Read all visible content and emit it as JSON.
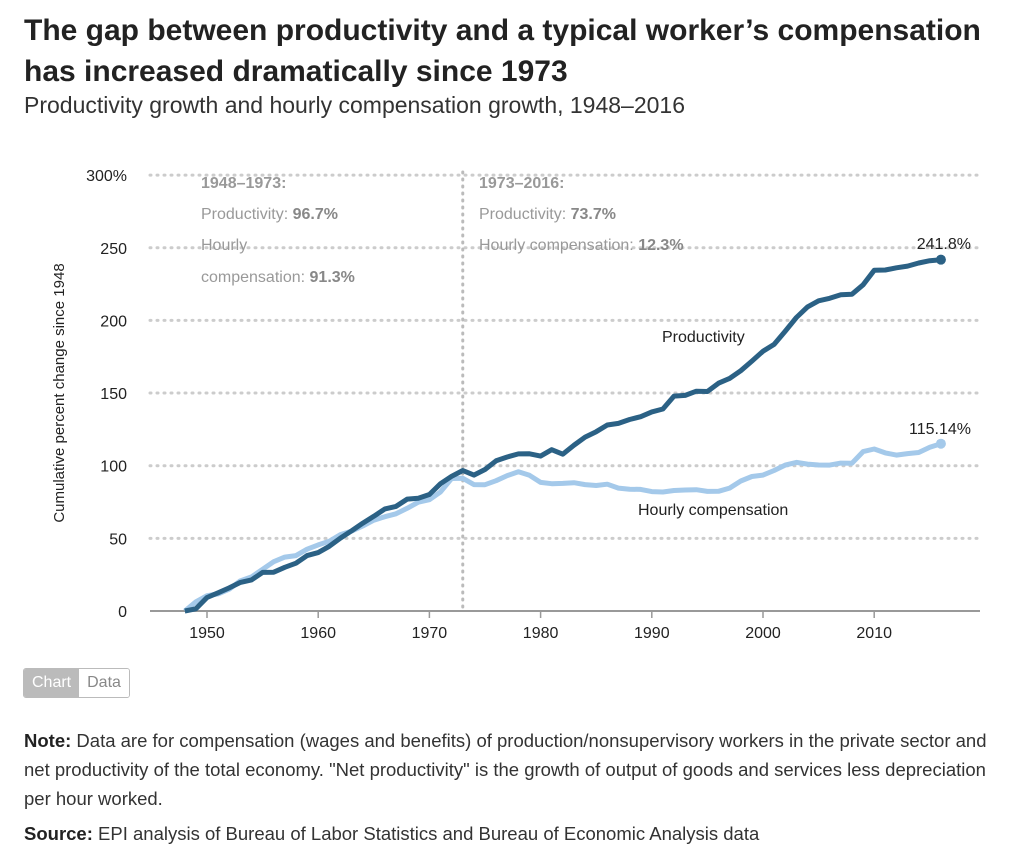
{
  "title": "The gap between productivity and a typical worker’s compensation has increased dramatically since 1973",
  "subtitle": "Productivity growth and hourly compensation growth, 1948–2016",
  "toggle": {
    "chart": "Chart",
    "data": "Data"
  },
  "note_label": "Note:",
  "note": "Data are for compensation (wages and benefits) of production/nonsupervisory workers in the private sector and net productivity of the total economy. \"Net productivity\" is the growth of output of goods and services less depreciation per hour worked.",
  "source_label": "Source:",
  "source": "EPI analysis of Bureau of Labor Statistics and Bureau of Economic Analysis data",
  "colors": {
    "productivity": "#2b6185",
    "compensation": "#a4c9ea",
    "grid": "#cccccc",
    "annotation": "#999999"
  },
  "chart_data": {
    "type": "line",
    "ylabel": "Cumulative percent change since 1948",
    "xlabel": "",
    "xlim": [
      1945,
      2019
    ],
    "ylim": [
      0,
      300
    ],
    "yticks": [
      0,
      50,
      100,
      150,
      200,
      250
    ],
    "ytick_labels": [
      "0",
      "50",
      "100",
      "150",
      "200",
      "250",
      "300%"
    ],
    "xticks": [
      1950,
      1960,
      1970,
      1980,
      1990,
      2000,
      2010
    ],
    "xtick_labels": [
      "1950",
      "1960",
      "1970",
      "1980",
      "1990",
      "2000",
      "2010"
    ],
    "grid": true,
    "divider_year": 1973,
    "annotations": {
      "left": {
        "heading": "1948–1973:",
        "l1": "Productivity: ",
        "v1": "96.7%",
        "l2a": "Hourly",
        "l2b": "compensation: ",
        "v2": "91.3%"
      },
      "right": {
        "heading": "1973–2016:",
        "l1": "Productivity: ",
        "v1": "73.7%",
        "l2": "Hourly compensation: ",
        "v2": "12.3%"
      }
    },
    "x": [
      1948,
      1949,
      1950,
      1951,
      1952,
      1953,
      1954,
      1955,
      1956,
      1957,
      1958,
      1959,
      1960,
      1961,
      1962,
      1963,
      1964,
      1965,
      1966,
      1967,
      1968,
      1969,
      1970,
      1971,
      1972,
      1973,
      1974,
      1975,
      1976,
      1977,
      1978,
      1979,
      1980,
      1981,
      1982,
      1983,
      1984,
      1985,
      1986,
      1987,
      1988,
      1989,
      1990,
      1991,
      1992,
      1993,
      1994,
      1995,
      1996,
      1997,
      1998,
      1999,
      2000,
      2001,
      2002,
      2003,
      2004,
      2005,
      2006,
      2007,
      2008,
      2009,
      2010,
      2011,
      2012,
      2013,
      2014,
      2015,
      2016
    ],
    "series": [
      {
        "name": "Productivity",
        "end_label": "241.8%",
        "values": [
          0,
          1.5,
          9.3,
          12.5,
          15.9,
          19.7,
          21.4,
          26.6,
          26.7,
          30.1,
          32.9,
          38.1,
          40.2,
          44.5,
          50.2,
          55.2,
          60.4,
          65.2,
          70.3,
          72.0,
          77.0,
          77.6,
          80.2,
          87.6,
          92.7,
          96.7,
          93.5,
          97.4,
          103.4,
          106.0,
          108.1,
          108.2,
          106.6,
          111.0,
          107.9,
          114.1,
          119.7,
          123.4,
          128.0,
          129.1,
          131.8,
          133.7,
          137.0,
          139.0,
          147.9,
          148.4,
          151.3,
          151.1,
          156.8,
          160.1,
          165.4,
          172.0,
          178.8,
          183.5,
          192.5,
          202.0,
          209.3,
          213.5,
          215.2,
          217.6,
          218.0,
          224.5,
          234.5,
          234.7,
          236.2,
          237.4,
          239.5,
          241.1,
          241.8
        ]
      },
      {
        "name": "Hourly compensation",
        "end_label": "115.14%",
        "values": [
          0,
          6.3,
          10.5,
          11.8,
          15.0,
          20.8,
          23.5,
          28.7,
          33.9,
          37.1,
          38.1,
          42.5,
          45.5,
          48.0,
          52.6,
          55.0,
          58.5,
          62.5,
          64.9,
          66.9,
          70.7,
          74.9,
          76.6,
          82.0,
          91.2,
          91.3,
          87.0,
          86.9,
          89.7,
          93.2,
          95.8,
          93.4,
          88.5,
          87.6,
          87.8,
          88.3,
          87.0,
          86.4,
          87.3,
          84.6,
          83.8,
          83.7,
          82.2,
          81.9,
          82.9,
          83.3,
          83.5,
          82.3,
          82.4,
          84.6,
          89.5,
          92.6,
          93.5,
          96.7,
          100.4,
          102.3,
          101.1,
          100.5,
          100.4,
          101.8,
          101.7,
          109.7,
          111.5,
          108.8,
          107.3,
          108.3,
          109.1,
          112.7,
          115.14
        ]
      }
    ]
  }
}
